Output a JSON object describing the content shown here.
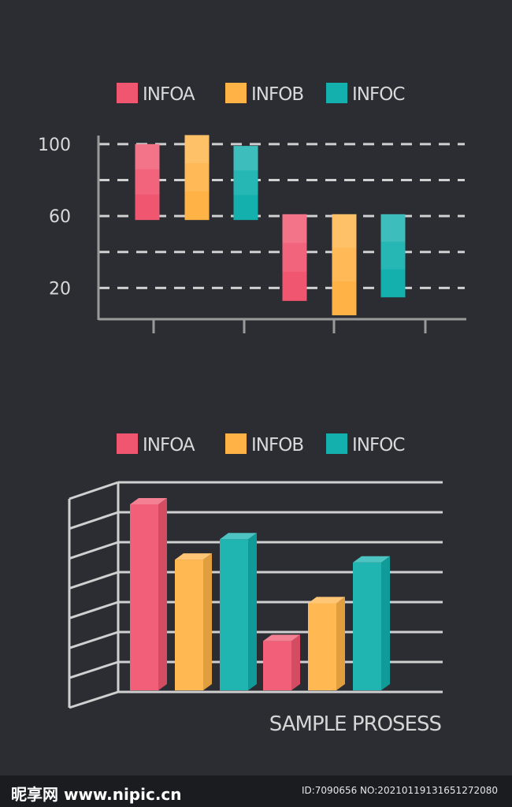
{
  "colors": {
    "background": "#2b2d33",
    "axis": "#9a9a9a",
    "grid": "#d0d0d0",
    "series": [
      "#f0566f",
      "#ffb347",
      "#13b0ad"
    ]
  },
  "legend": [
    {
      "label": "INFOA",
      "color": "#f0566f"
    },
    {
      "label": "INFOB",
      "color": "#ffb347"
    },
    {
      "label": "INFOC",
      "color": "#13b0ad"
    }
  ],
  "chart_data": [
    {
      "type": "bar",
      "subtype": "floating-range",
      "title": "",
      "xlabel": "",
      "ylabel": "",
      "ylim": [
        0,
        110
      ],
      "yticks": [
        100,
        60,
        20
      ],
      "grid": true,
      "legend_position": "top",
      "categories": [
        "",
        "",
        "",
        ""
      ],
      "series": [
        {
          "name": "INFOA",
          "ranges": [
            [
              58,
              100
            ],
            [
              13,
              61
            ]
          ]
        },
        {
          "name": "INFOB",
          "ranges": [
            [
              58,
              105
            ],
            [
              5,
              61
            ]
          ]
        },
        {
          "name": "INFOC",
          "ranges": [
            [
              58,
              99
            ],
            [
              15,
              61
            ]
          ]
        }
      ]
    },
    {
      "type": "bar",
      "subtype": "3d-column",
      "title": "",
      "xlabel": "SAMPLE PROSESS",
      "ylabel": "",
      "ylim": [
        0,
        7
      ],
      "grid": true,
      "legend_position": "top",
      "categories": [
        "",
        ""
      ],
      "series": [
        {
          "name": "INFOA",
          "values": [
            6.4,
            1.7
          ]
        },
        {
          "name": "INFOB",
          "values": [
            4.5,
            3.0
          ]
        },
        {
          "name": "INFOC",
          "values": [
            5.2,
            4.4
          ]
        }
      ]
    }
  ],
  "footer": {
    "logo": "昵享网 www.nipic.cn",
    "id_text": "ID:7090656 NO:20210119131651272080"
  }
}
